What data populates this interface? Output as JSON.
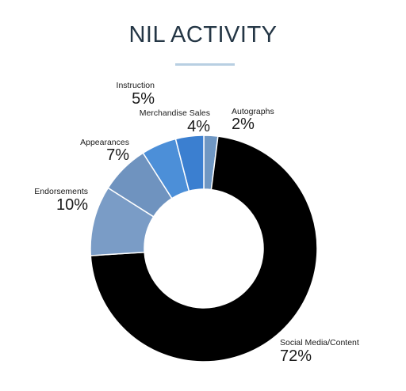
{
  "title": "NIL ACTIVITY",
  "chart_data": {
    "type": "pie",
    "variant": "donut",
    "title": "NIL ACTIVITY",
    "slices": [
      {
        "label": "Autographs",
        "value": 2,
        "value_label": "2%",
        "color": "#6f97c3"
      },
      {
        "label": "Social Media/Content",
        "value": 72,
        "value_label": "72%",
        "color": "#000000"
      },
      {
        "label": "Endorsements",
        "value": 10,
        "value_label": "10%",
        "color": "#7a9cc6"
      },
      {
        "label": "Appearances",
        "value": 7,
        "value_label": "7%",
        "color": "#6f93bf"
      },
      {
        "label": "Instruction",
        "value": 5,
        "value_label": "5%",
        "color": "#4c8fd8"
      },
      {
        "label": "Merchandise Sales",
        "value": 4,
        "value_label": "4%",
        "color": "#3b7fd0"
      }
    ]
  }
}
